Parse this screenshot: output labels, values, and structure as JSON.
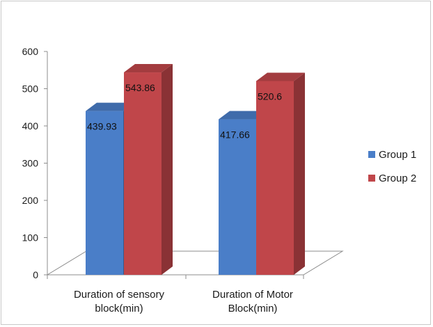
{
  "chart_data": {
    "type": "bar",
    "title": "",
    "xlabel": "",
    "ylabel": "",
    "categories": [
      "Duration of sensory block(min)",
      "Duration of Motor Block(min)"
    ],
    "category_lines": [
      [
        "Duration of sensory",
        "block(min)"
      ],
      [
        "Duration of Motor",
        "Block(min)"
      ]
    ],
    "series": [
      {
        "name": "Group 1",
        "values": [
          439.93,
          417.66
        ],
        "labels": [
          "439.93",
          "417.66"
        ],
        "color": "#4a7ec8"
      },
      {
        "name": "Group 2",
        "values": [
          543.86,
          520.6
        ],
        "labels": [
          "543.86",
          "520.6"
        ],
        "color": "#c0464a"
      }
    ],
    "ylim": [
      0,
      600
    ],
    "yticks": [
      "0",
      "100",
      "200",
      "300",
      "400",
      "500",
      "600"
    ],
    "grid": false,
    "style": "3d-column",
    "legend": "right"
  }
}
